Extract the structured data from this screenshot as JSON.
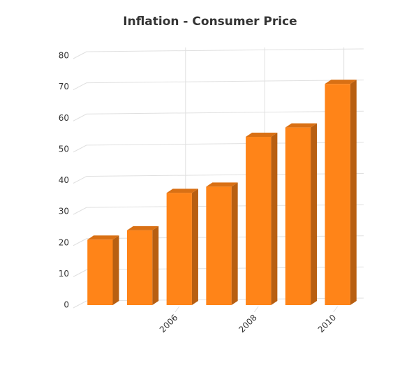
{
  "chart_data": {
    "type": "bar3d",
    "title": "Inflation - Consumer Price",
    "x": [
      2004,
      2005,
      2006,
      2007,
      2008,
      2009,
      2010
    ],
    "values": [
      21,
      24,
      36,
      38,
      54,
      57,
      71
    ],
    "color": "#ff8418",
    "xlim": [
      2003.5,
      2010.5
    ],
    "xticks": [
      2006,
      2008,
      2010
    ],
    "ylim": [
      0,
      80
    ],
    "yticks": [
      0,
      10,
      20,
      30,
      40,
      50,
      60,
      70,
      80
    ],
    "grid": true
  }
}
